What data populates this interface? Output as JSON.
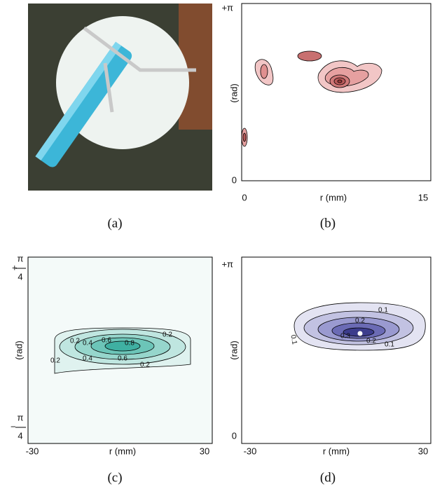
{
  "panels": [
    {
      "caption": "(a)"
    },
    {
      "caption": "(b)",
      "y_label": "(rad)",
      "x_label": "r (mm)",
      "y_ticks": [
        "+π",
        "0"
      ],
      "x_ticks": [
        "0",
        "15"
      ]
    },
    {
      "caption": "(c)",
      "y_label": "(rad)",
      "x_label": "r (mm)",
      "y_ticks": [
        {
          "sign": "+",
          "numerator": "π",
          "denominator": "4"
        },
        {
          "sign": "−",
          "numerator": "π",
          "denominator": "4"
        }
      ],
      "x_ticks": [
        "-30",
        "30"
      ],
      "contour_labels": [
        "0.2",
        "0.4",
        "0.6",
        "0.8",
        "0.6",
        "0.4",
        "0.2",
        "0.2",
        "0.2"
      ]
    },
    {
      "caption": "(d)",
      "y_label": "(rad)",
      "x_label": "r (mm)",
      "y_ticks": [
        "+π",
        "0"
      ],
      "x_ticks": [
        "-30",
        "30"
      ],
      "contour_labels": [
        "0.1",
        "0.2",
        "0.3",
        "0.2",
        "0.1",
        "0.1"
      ]
    }
  ]
}
